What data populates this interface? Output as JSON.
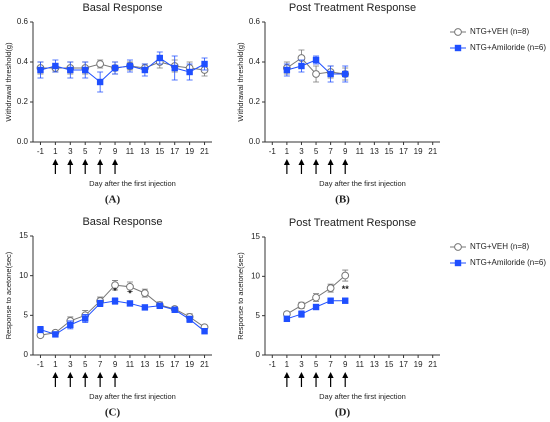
{
  "chart_data": [
    {
      "type": "line",
      "title": "Basal Response",
      "xlabel": "Day after the first injection",
      "ylabel": "Withdrawal threshold(g)",
      "panel_label": "(A)",
      "x": [
        -1,
        1,
        3,
        5,
        7,
        9,
        11,
        13,
        15,
        17,
        19,
        21
      ],
      "xlim": [
        -2,
        22
      ],
      "xticks": [
        -1,
        1,
        3,
        5,
        7,
        9,
        11,
        13,
        15,
        17,
        19,
        21
      ],
      "ylim": [
        0,
        0.6
      ],
      "yticks": [
        {
          "value": 0,
          "label": "0.0"
        },
        0.2,
        0.4,
        0.6
      ],
      "injection_days": [
        1,
        3,
        5,
        7,
        9
      ],
      "legend": false,
      "series": [
        {
          "color": "#777777",
          "marker": "circle",
          "values": [
            0.37,
            0.37,
            0.37,
            0.37,
            0.39,
            0.37,
            0.38,
            0.37,
            0.4,
            0.38,
            0.37,
            0.36
          ],
          "errors": [
            0.03,
            0.02,
            0.03,
            0.03,
            0.02,
            0.03,
            0.02,
            0.02,
            0.03,
            0.03,
            0.03,
            0.03
          ]
        },
        {
          "color": "#1f4fff",
          "marker": "square",
          "values": [
            0.36,
            0.38,
            0.36,
            0.36,
            0.3,
            0.37,
            0.38,
            0.36,
            0.42,
            0.37,
            0.35,
            0.39
          ],
          "errors": [
            0.04,
            0.03,
            0.04,
            0.04,
            0.05,
            0.03,
            0.03,
            0.03,
            0.03,
            0.06,
            0.04,
            0.03
          ]
        }
      ]
    },
    {
      "type": "line",
      "title": "Post Treatment Response",
      "xlabel": "Day after the first injection",
      "ylabel": "Withdrawal threshold(g)",
      "panel_label": "(B)",
      "x": [
        1,
        3,
        5,
        7,
        9
      ],
      "xlim": [
        -2,
        22
      ],
      "xticks": [
        -1,
        1,
        3,
        5,
        7,
        9,
        11,
        13,
        15,
        17,
        19,
        21
      ],
      "ylim": [
        0,
        0.6
      ],
      "yticks": [
        {
          "value": 0,
          "label": "0.0"
        },
        0.2,
        0.4,
        0.6
      ],
      "injection_days": [
        1,
        3,
        5,
        7,
        9
      ],
      "legend": true,
      "series": [
        {
          "name": "NTG+VEH (n=8)",
          "color": "#777777",
          "marker": "circle",
          "values": [
            0.37,
            0.42,
            0.34,
            0.35,
            0.34
          ],
          "errors": [
            0.03,
            0.04,
            0.04,
            0.03,
            0.03
          ]
        },
        {
          "name": "NTG+Amiloride (n=6)",
          "color": "#1f4fff",
          "marker": "square",
          "values": [
            0.36,
            0.38,
            0.41,
            0.34,
            0.34
          ],
          "errors": [
            0.03,
            0.03,
            0.02,
            0.04,
            0.04
          ]
        }
      ]
    },
    {
      "type": "line",
      "title": "Basal Response",
      "xlabel": "Day after the first injection",
      "ylabel": "Response to acetone(sec)",
      "panel_label": "(C)",
      "x": [
        -1,
        1,
        3,
        5,
        7,
        9,
        11,
        13,
        15,
        17,
        19,
        21
      ],
      "xlim": [
        -2,
        22
      ],
      "xticks": [
        -1,
        1,
        3,
        5,
        7,
        9,
        11,
        13,
        15,
        17,
        19,
        21
      ],
      "ylim": [
        0,
        15
      ],
      "yticks": [
        0,
        5,
        10,
        15
      ],
      "injection_days": [
        1,
        3,
        5,
        7,
        9
      ],
      "legend": false,
      "annotations": [
        {
          "x": 9,
          "y": 8,
          "text": "*"
        },
        {
          "x": 11,
          "y": 7.7,
          "text": "*"
        }
      ],
      "series": [
        {
          "color": "#777777",
          "marker": "circle",
          "values": [
            2.5,
            2.8,
            4.3,
            5.0,
            6.8,
            8.8,
            8.6,
            7.8,
            6.3,
            5.8,
            4.8,
            3.5
          ],
          "errors": [
            0.3,
            0.3,
            0.5,
            0.6,
            0.5,
            0.6,
            0.6,
            0.5,
            0.4,
            0.3,
            0.4,
            0.3
          ]
        },
        {
          "color": "#1f4fff",
          "marker": "square",
          "values": [
            3.2,
            2.6,
            3.8,
            4.6,
            6.5,
            6.8,
            6.5,
            6.0,
            6.2,
            5.7,
            4.5,
            3.0
          ],
          "errors": [
            0.4,
            0.3,
            0.5,
            0.5,
            0.4,
            0.4,
            0.3,
            0.3,
            0.3,
            0.3,
            0.4,
            0.3
          ]
        }
      ]
    },
    {
      "type": "line",
      "title": "Post Treatment Response",
      "xlabel": "Day after the first injection",
      "ylabel": "Response to acetone(sec)",
      "panel_label": "(D)",
      "x": [
        1,
        3,
        5,
        7,
        9
      ],
      "xlim": [
        -2,
        22
      ],
      "xticks": [
        -1,
        1,
        3,
        5,
        7,
        9,
        11,
        13,
        15,
        17,
        19,
        21
      ],
      "ylim": [
        0,
        15
      ],
      "yticks": [
        0,
        5,
        10,
        15
      ],
      "injection_days": [
        1,
        3,
        5,
        7,
        9
      ],
      "legend": true,
      "annotations": [
        {
          "x": 9,
          "y": 8.3,
          "text": "**"
        }
      ],
      "series": [
        {
          "name": "NTG+VEH (n=8)",
          "color": "#777777",
          "marker": "circle",
          "values": [
            5.2,
            6.3,
            7.3,
            8.5,
            10.1
          ],
          "errors": [
            0.3,
            0.4,
            0.5,
            0.5,
            0.7
          ]
        },
        {
          "name": "NTG+Amiloride (n=6)",
          "color": "#1f4fff",
          "marker": "square",
          "values": [
            4.6,
            5.2,
            6.1,
            6.9,
            6.9
          ],
          "errors": [
            0.3,
            0.4,
            0.3,
            0.3,
            0.3
          ]
        }
      ]
    }
  ]
}
